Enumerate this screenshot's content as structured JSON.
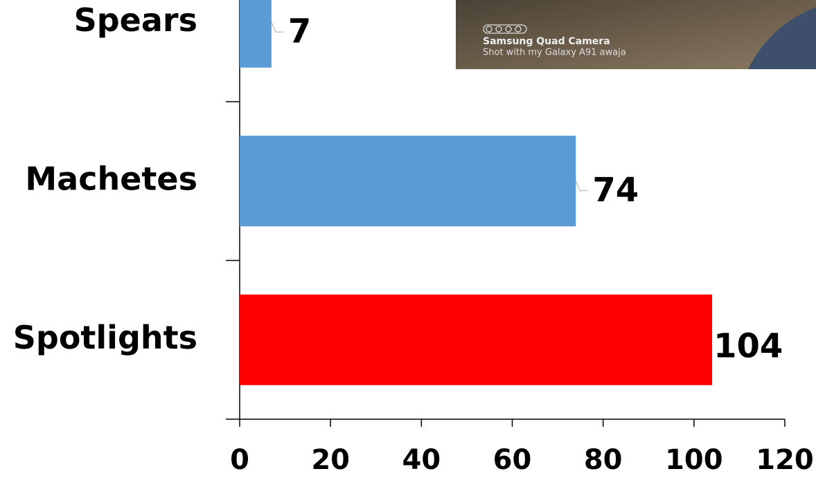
{
  "chart_data": {
    "type": "hbar",
    "categories": [
      "Spears",
      "Machetes",
      "Spotlights"
    ],
    "values": [
      7,
      74,
      104
    ],
    "colors": [
      "#5b9bd5",
      "#5b9bd5",
      "#ff0000"
    ],
    "xlim": [
      0,
      120
    ],
    "xticks": [
      0,
      20,
      40,
      60,
      80,
      100,
      120
    ],
    "annotations": [
      "Samsung Quad Camera",
      "Shot with my Galaxy A91 awaja"
    ]
  }
}
